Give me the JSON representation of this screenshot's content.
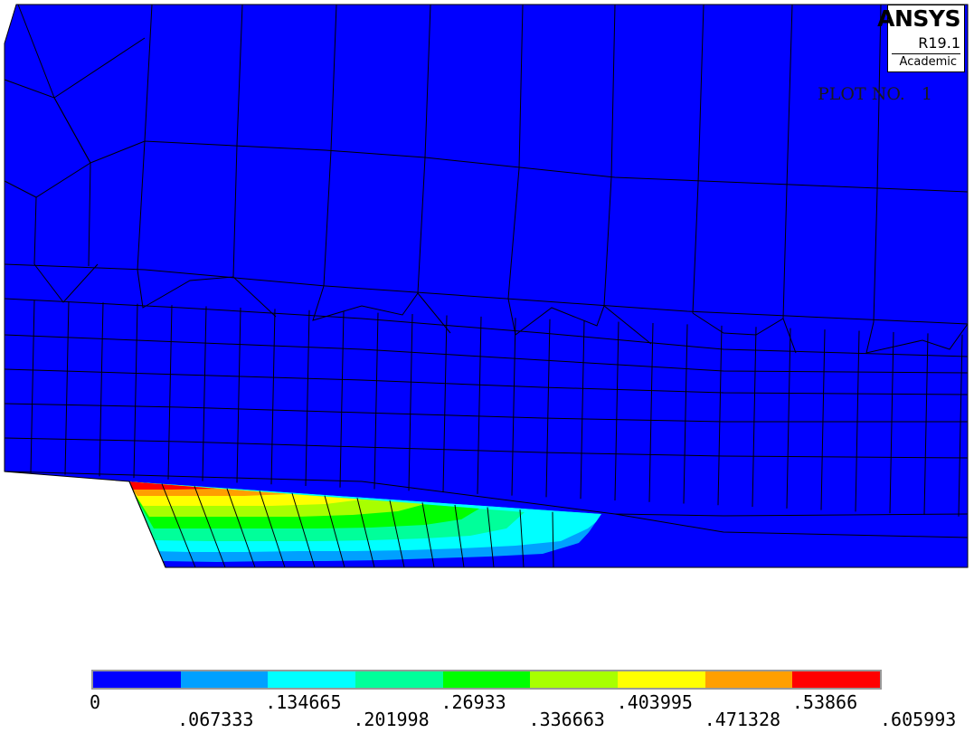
{
  "logo": {
    "name": "ANSYS",
    "version": "R19.1",
    "edition": "Academic"
  },
  "plot_label": "PLOT NO.   1",
  "legend": {
    "colors": [
      "#0000ff",
      "#00a0ff",
      "#00ffff",
      "#00ff9a",
      "#00ff00",
      "#a8ff00",
      "#ffff00",
      "#ff9f00",
      "#ff0000"
    ],
    "ticks_upper": [
      "0",
      ".134665",
      ".26933",
      ".403995",
      ".53866"
    ],
    "ticks_lower": [
      ".067333",
      ".201998",
      ".336663",
      ".471328",
      ".605993"
    ]
  }
}
